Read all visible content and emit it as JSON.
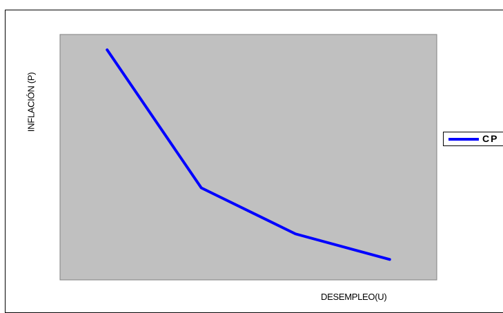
{
  "chart_data": {
    "type": "line",
    "title": "",
    "xlabel": "DESEMPLEO(U)",
    "ylabel": "INFLACIÓN (P)",
    "x": [
      1,
      2,
      3,
      4
    ],
    "series": [
      {
        "name": "CP",
        "color": "#0000ff",
        "values": [
          10,
          4.6,
          2.8,
          1.8
        ]
      }
    ],
    "xlim": [
      0.5,
      4.5
    ],
    "ylim": [
      1,
      10.6
    ],
    "grid": false,
    "legend_position": "right",
    "plot_background": "#c0c0c0",
    "axis_ticks_shown": false
  }
}
